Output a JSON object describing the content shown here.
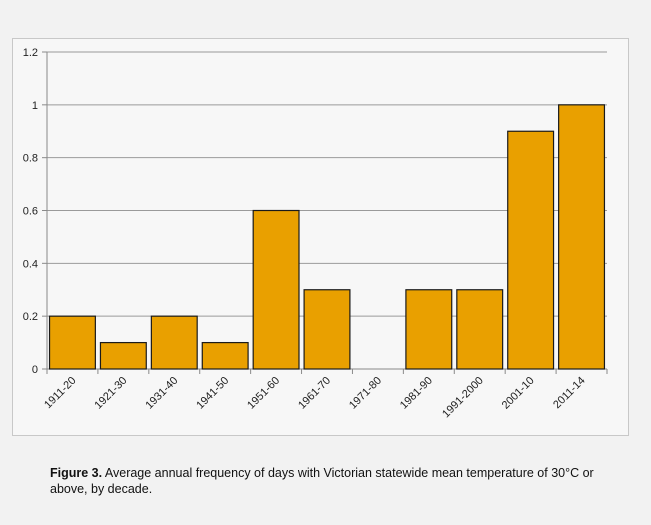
{
  "chart_data": {
    "type": "bar",
    "title": "",
    "xlabel": "",
    "ylabel": "",
    "categories": [
      "1911-20",
      "1921-30",
      "1931-40",
      "1941-50",
      "1951-60",
      "1961-70",
      "1971-80",
      "1981-90",
      "1991-2000",
      "2001-10",
      "2011-14"
    ],
    "values": [
      0.2,
      0.1,
      0.2,
      0.1,
      0.6,
      0.3,
      0,
      0.3,
      0.3,
      0.9,
      1.0
    ],
    "ylim": [
      0,
      1.2
    ],
    "yticks": [
      0,
      0.2,
      0.4,
      0.6,
      0.8,
      1,
      1.2
    ],
    "ytick_labels": [
      "0",
      "0.2",
      "0.4",
      "0.6",
      "0.8",
      "1",
      "1.2"
    ],
    "grid": true,
    "bar_color": "#e9a000",
    "bar_edge_color": "#1a1a1a",
    "grid_color": "#9a9a9a"
  },
  "caption": {
    "label": "Figure 3.",
    "text": " Average annual frequency of days with Victorian statewide mean temperature of 30°C or above, by decade."
  }
}
